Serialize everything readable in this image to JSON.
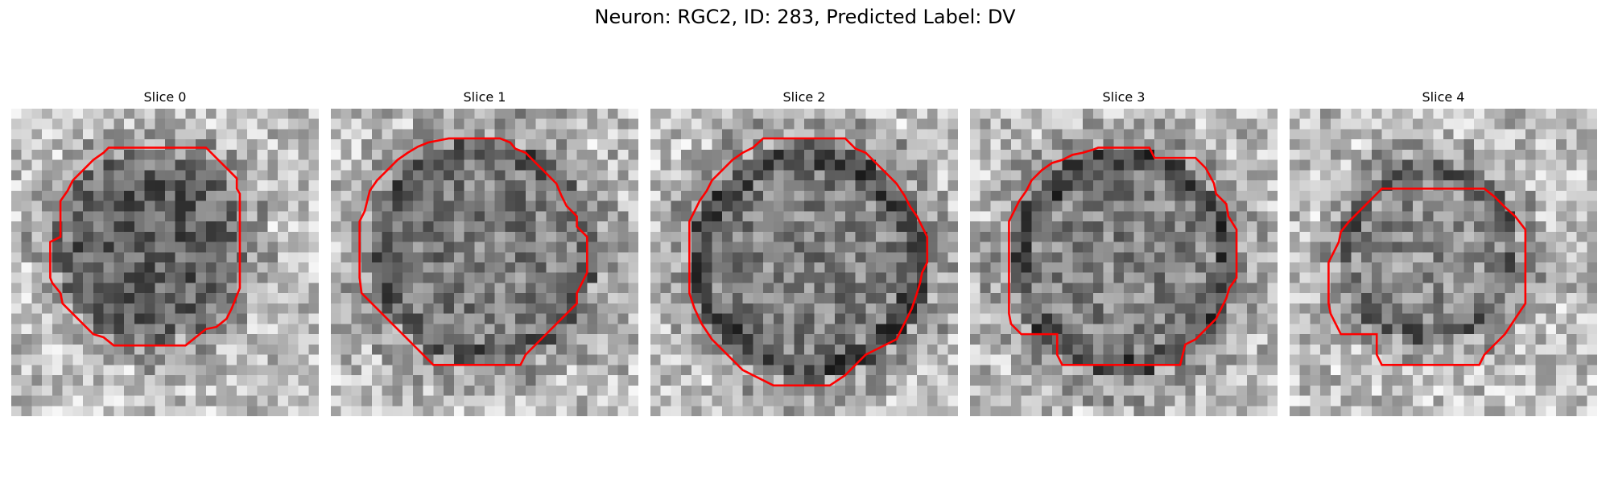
{
  "figure": {
    "title": "Neuron: RGC2, ID: 283, Predicted Label: DV"
  },
  "panels": [
    {
      "title": "Slice 0",
      "seed": 11,
      "darkness": 0.62,
      "ring": 0.25,
      "outer_dark": 0.2
    },
    {
      "title": "Slice 1",
      "seed": 23,
      "darkness": 0.42,
      "ring": 0.45,
      "outer_dark": 0.35
    },
    {
      "title": "Slice 2",
      "seed": 37,
      "darkness": 0.4,
      "ring": 0.55,
      "outer_dark": 0.2
    },
    {
      "title": "Slice 3",
      "seed": 41,
      "darkness": 0.38,
      "ring": 0.55,
      "outer_dark": 0.35
    },
    {
      "title": "Slice 4",
      "seed": 53,
      "darkness": 0.3,
      "ring": 0.35,
      "outer_dark": 0.3
    }
  ],
  "colors": {
    "contour": "#ff0000",
    "background": "#ffffff"
  },
  "image_style": "grayscale pixelated microscopy patch with red segmentation contour"
}
